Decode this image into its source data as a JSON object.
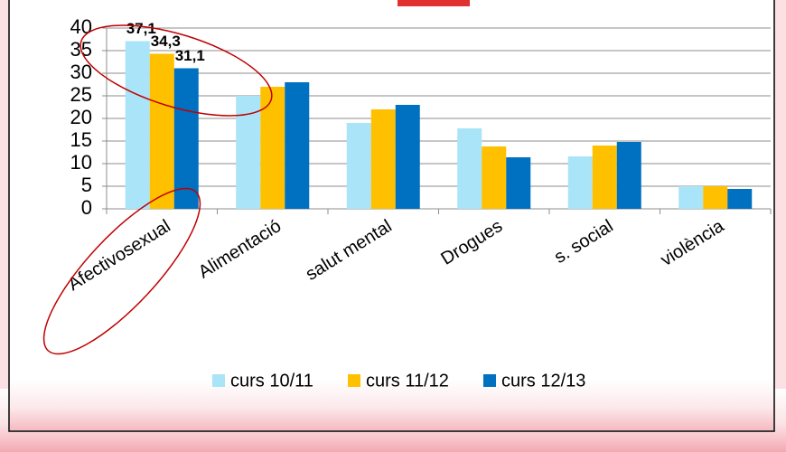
{
  "chart_data": {
    "type": "bar",
    "categories": [
      "Afectivosexual",
      "Alimentació",
      "salut mental",
      "Drogues",
      "s. social",
      "violència"
    ],
    "series": [
      {
        "name": "curs 10/11",
        "color": "#a9e4f8",
        "values": [
          37.1,
          25,
          19,
          17.8,
          11.6,
          5
        ],
        "value_labels": [
          "37,1",
          null,
          null,
          null,
          null,
          null
        ]
      },
      {
        "name": "curs 11/12",
        "color": "#ffc000",
        "values": [
          34.3,
          27,
          22,
          13.8,
          14,
          5
        ],
        "value_labels": [
          "34,3",
          null,
          null,
          null,
          null,
          null
        ]
      },
      {
        "name": "curs 12/13",
        "color": "#0070c0",
        "values": [
          31.1,
          28,
          23,
          11.4,
          14.8,
          4.4
        ],
        "value_labels": [
          "31,1",
          null,
          null,
          null,
          null,
          null
        ]
      }
    ],
    "ylim": [
      0,
      40
    ],
    "yticks": [
      0,
      5,
      10,
      15,
      20,
      25,
      30,
      35,
      40
    ],
    "grid": true
  }
}
